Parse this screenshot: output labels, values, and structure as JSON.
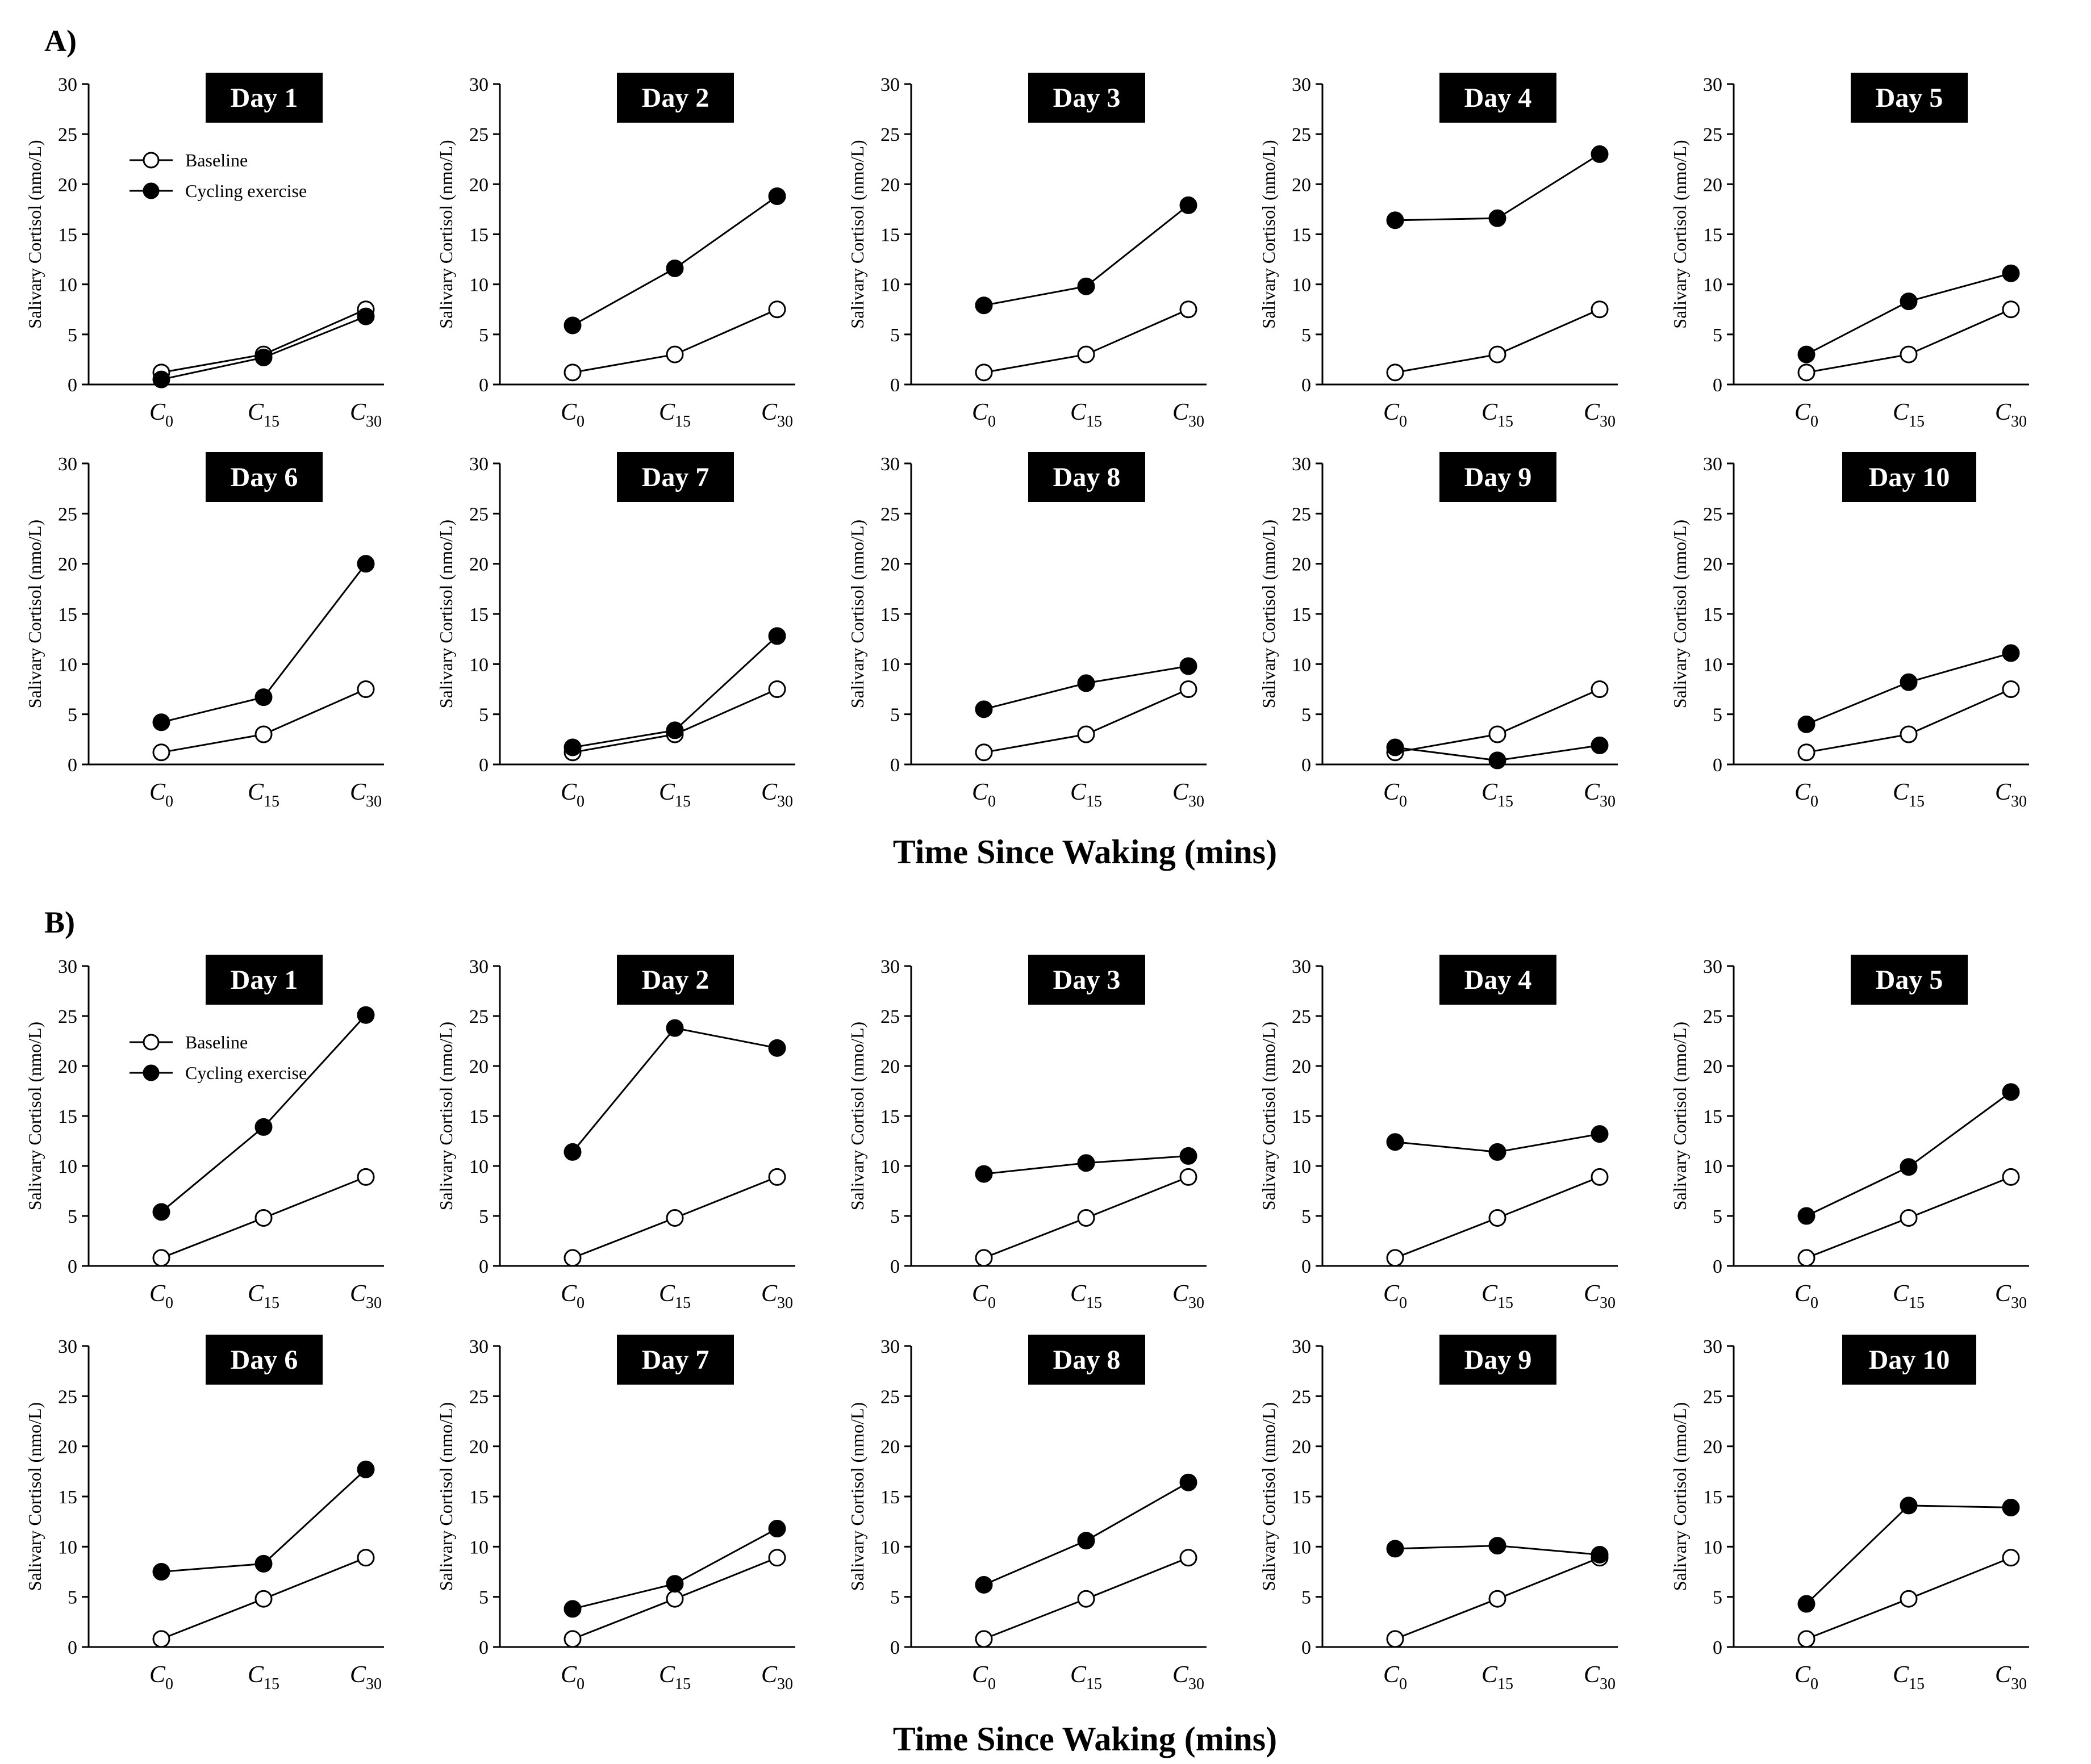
{
  "figure": {
    "x_axis_title": "Time Since Waking (mins)",
    "colors": {
      "axis": "#000000",
      "baseline_fill": "#ffffff",
      "exercise_fill": "#000000",
      "badge": "#000000",
      "badge_text": "#ffffff"
    }
  },
  "chart_data": [
    {
      "panel": "A)",
      "type": "line",
      "ylabel": "Salivary Cortisol (nmo/L)",
      "ylim": [
        0,
        30
      ],
      "yticks": [
        0,
        5,
        10,
        15,
        20,
        25,
        30
      ],
      "categories": [
        {
          "base": "C",
          "sub": "0"
        },
        {
          "base": "C",
          "sub": "15"
        },
        {
          "base": "C",
          "sub": "30"
        }
      ],
      "legend": {
        "baseline": "Baseline",
        "exercise": "Cycling exercise"
      },
      "baseline": [
        1.2,
        3.0,
        7.5
      ],
      "days": [
        {
          "title": "Day 1",
          "exercise": [
            0.5,
            2.7,
            6.8
          ]
        },
        {
          "title": "Day 2",
          "exercise": [
            5.9,
            11.6,
            18.8
          ]
        },
        {
          "title": "Day 3",
          "exercise": [
            7.9,
            9.8,
            17.9
          ]
        },
        {
          "title": "Day 4",
          "exercise": [
            16.4,
            16.6,
            23.0
          ]
        },
        {
          "title": "Day 5",
          "exercise": [
            3.0,
            8.3,
            11.1
          ]
        },
        {
          "title": "Day 6",
          "exercise": [
            4.2,
            6.7,
            20.0
          ]
        },
        {
          "title": "Day 7",
          "exercise": [
            1.7,
            3.4,
            12.8
          ]
        },
        {
          "title": "Day 8",
          "exercise": [
            5.5,
            8.1,
            9.8
          ]
        },
        {
          "title": "Day 9",
          "exercise": [
            1.7,
            0.4,
            1.9
          ]
        },
        {
          "title": "Day 10",
          "exercise": [
            4.0,
            8.2,
            11.1
          ]
        }
      ]
    },
    {
      "panel": "B)",
      "type": "line",
      "ylabel": "Salivary Cortisol (nmo/L)",
      "ylim": [
        0,
        30
      ],
      "yticks": [
        0,
        5,
        10,
        15,
        20,
        25,
        30
      ],
      "categories": [
        {
          "base": "C",
          "sub": "0"
        },
        {
          "base": "C",
          "sub": "15"
        },
        {
          "base": "C",
          "sub": "30"
        }
      ],
      "legend": {
        "baseline": "Baseline",
        "exercise": "Cycling exercise"
      },
      "baseline": [
        0.8,
        4.8,
        8.9
      ],
      "days": [
        {
          "title": "Day 1",
          "exercise": [
            5.4,
            13.9,
            25.1
          ]
        },
        {
          "title": "Day 2",
          "exercise": [
            11.4,
            23.8,
            21.8
          ]
        },
        {
          "title": "Day 3",
          "exercise": [
            9.2,
            10.3,
            11.0
          ]
        },
        {
          "title": "Day 4",
          "exercise": [
            12.4,
            11.4,
            13.2
          ]
        },
        {
          "title": "Day 5",
          "exercise": [
            5.0,
            9.9,
            17.4
          ]
        },
        {
          "title": "Day 6",
          "exercise": [
            7.5,
            8.3,
            17.7
          ]
        },
        {
          "title": "Day 7",
          "exercise": [
            3.8,
            6.3,
            11.8
          ]
        },
        {
          "title": "Day 8",
          "exercise": [
            6.2,
            10.6,
            16.4
          ]
        },
        {
          "title": "Day 9",
          "exercise": [
            9.8,
            10.1,
            9.2
          ]
        },
        {
          "title": "Day 10",
          "exercise": [
            4.3,
            14.1,
            13.9
          ]
        }
      ]
    }
  ]
}
